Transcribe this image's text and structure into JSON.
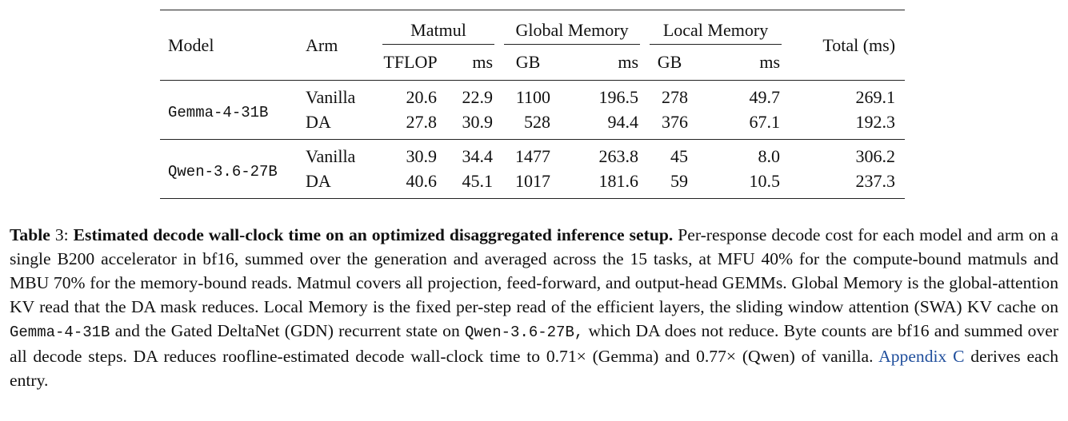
{
  "table": {
    "header": {
      "model": "Model",
      "arm": "Arm",
      "total": "Total (ms)",
      "groups": [
        {
          "label": "Matmul",
          "sub": [
            "TFLOP",
            "ms"
          ]
        },
        {
          "label": "Global Memory",
          "sub": [
            "GB",
            "ms"
          ]
        },
        {
          "label": "Local Memory",
          "sub": [
            "GB",
            "ms"
          ]
        }
      ]
    },
    "groups": [
      {
        "model": "Gemma-4-31B",
        "rows": [
          {
            "arm": "Vanilla",
            "values": [
              "20.6",
              "22.9",
              "1100",
              "196.5",
              "278",
              "49.7",
              "269.1"
            ]
          },
          {
            "arm": "DA",
            "values": [
              "27.8",
              "30.9",
              "528",
              "94.4",
              "376",
              "67.1",
              "192.3"
            ]
          }
        ]
      },
      {
        "model": "Qwen-3.6-27B",
        "rows": [
          {
            "arm": "Vanilla",
            "values": [
              "30.9",
              "34.4",
              "1477",
              "263.8",
              "45",
              "8.0",
              "306.2"
            ]
          },
          {
            "arm": "DA",
            "values": [
              "40.6",
              "45.1",
              "1017",
              "181.6",
              "59",
              "10.5",
              "237.3"
            ]
          }
        ]
      }
    ]
  },
  "caption": {
    "label": "Table",
    "number": "3:",
    "title": "Estimated decode wall-clock time on an optimized disaggregated inference setup.",
    "text_1": "Per-response decode cost for each model and arm on a single B200 accelerator in bf16, summed over the generation and averaged across the 15 tasks, at MFU 40% for the compute-bound matmuls and MBU 70% for the memory-bound reads. Matmul covers all projection, feed-forward, and output-head GEMMs. Global Memory is the global-attention KV read that the DA mask reduces. Local Memory is the fixed per-step read of the efficient layers, the sliding window attention (SWA) KV cache on",
    "model_1": "Gemma-4-31B",
    "text_2": "and the Gated DeltaNet (GDN) recurrent state on",
    "model_2": "Qwen-3.6-27B,",
    "text_3": "which DA does not reduce. Byte counts are bf16 and summed over all decode steps. DA reduces roofline-estimated decode wall-clock time to 0.71× (Gemma) and 0.77× (Qwen) of vanilla.",
    "link": "Appendix C",
    "text_4": "derives each entry."
  }
}
